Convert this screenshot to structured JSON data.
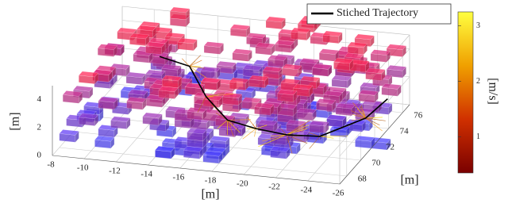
{
  "chart_data": {
    "type": "voxel3d",
    "xlabel": "[m]",
    "ylabel": "[m]",
    "zlabel": "[m]",
    "xlim": [
      -8,
      -26
    ],
    "xticks": [
      -8,
      -10,
      -12,
      -14,
      -16,
      -18,
      -20,
      -22,
      -24,
      -26
    ],
    "ylim": [
      67,
      77
    ],
    "yticks": [
      68,
      70,
      72,
      74,
      76
    ],
    "zlim": [
      0,
      5
    ],
    "zticks": [
      0,
      2,
      4
    ],
    "series": [
      {
        "name": "Stiched Trajectory",
        "color": "#000000"
      }
    ],
    "colorbar": {
      "label": "[m/s]",
      "clim": [
        0.35,
        3.25
      ],
      "ticks": [
        1,
        2,
        3
      ],
      "colors": [
        "#7a0000",
        "#d03000",
        "#f0a000",
        "#ffff40"
      ]
    },
    "grid": true
  }
}
